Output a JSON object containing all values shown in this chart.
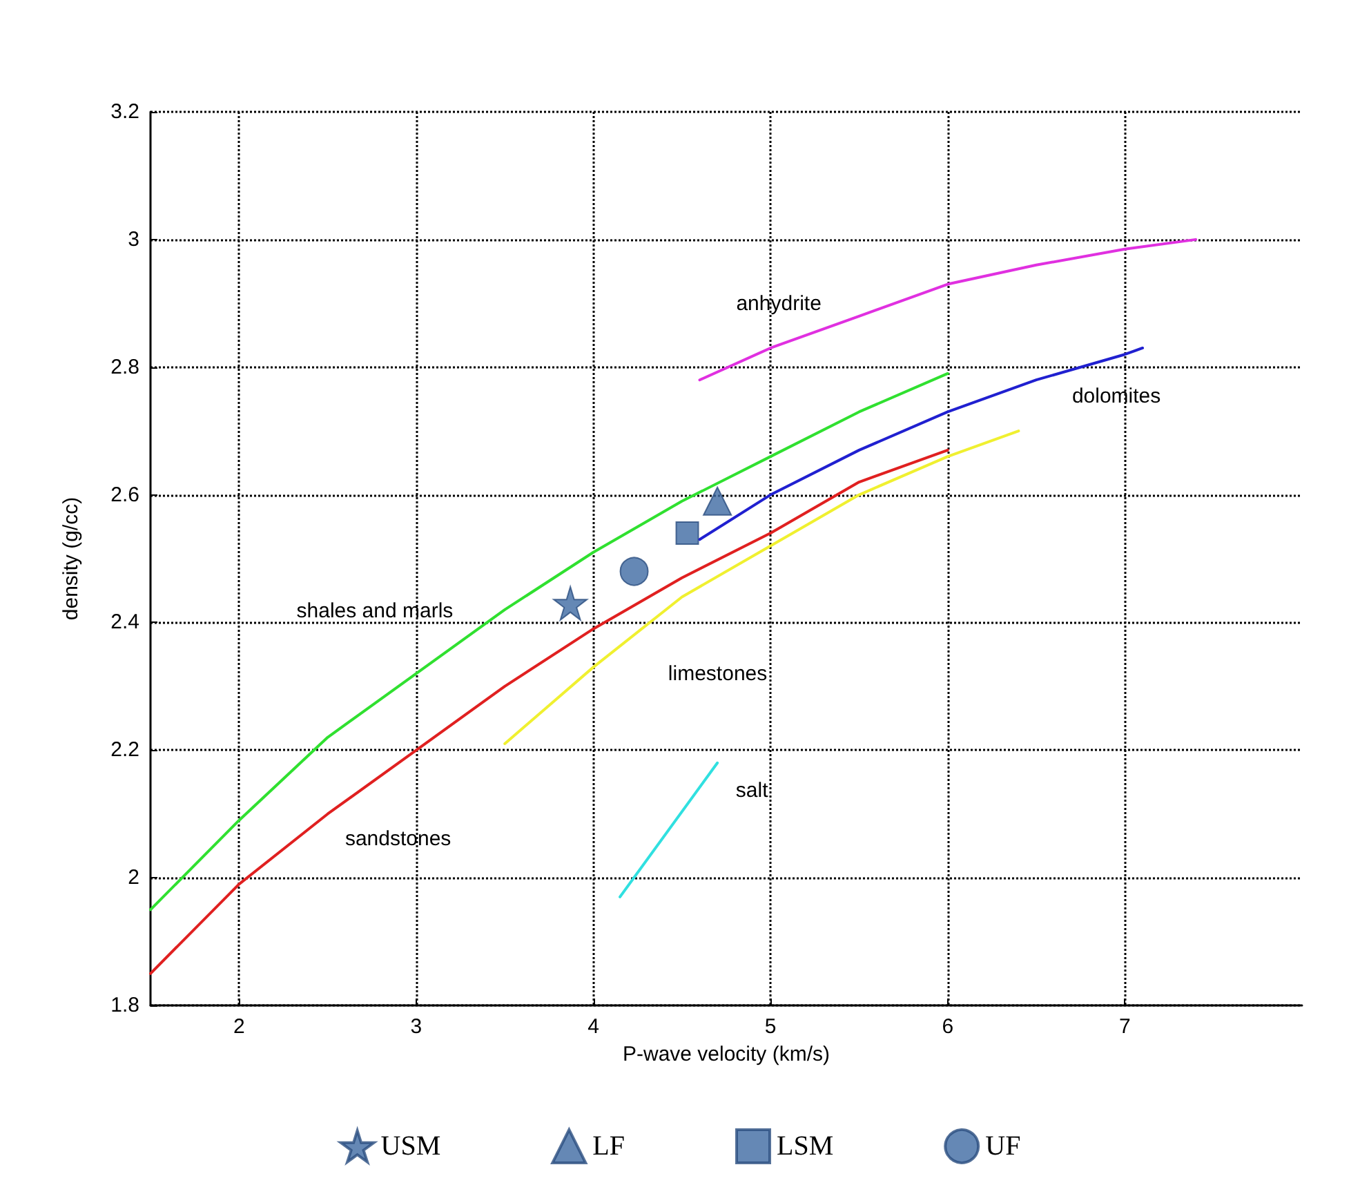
{
  "chart_data": {
    "type": "line",
    "xlabel": "P-wave velocity (km/s)",
    "ylabel": "density (g/cc)",
    "xlim": [
      1.5,
      8
    ],
    "xticks": [
      2,
      3,
      4,
      5,
      6,
      7
    ],
    "ylim": [
      1.8,
      3.2
    ],
    "yticks": [
      1.8,
      2,
      2.2,
      2.4,
      2.6,
      2.8,
      3,
      3.2
    ],
    "grid": true,
    "legend": "bottom",
    "line_style": "solid",
    "series": [
      {
        "name": "sandstones",
        "color": "#e02020",
        "x": [
          1.5,
          2,
          2.5,
          3,
          3.5,
          4,
          4.5,
          5,
          5.5,
          6
        ],
        "values": [
          1.85,
          1.99,
          2.1,
          2.2,
          2.3,
          2.39,
          2.47,
          2.54,
          2.62,
          2.67
        ]
      },
      {
        "name": "shales and marls",
        "color": "#30e030",
        "x": [
          1.5,
          2,
          2.5,
          3,
          3.5,
          4,
          4.5,
          5,
          5.5,
          6
        ],
        "values": [
          1.95,
          2.09,
          2.22,
          2.32,
          2.42,
          2.51,
          2.59,
          2.66,
          2.73,
          2.79
        ]
      },
      {
        "name": "limestones",
        "color": "#f0f030",
        "x": [
          3.5,
          4,
          4.5,
          5,
          5.5,
          6,
          6.4
        ],
        "values": [
          2.21,
          2.33,
          2.44,
          2.52,
          2.6,
          2.66,
          2.7
        ]
      },
      {
        "name": "dolomites",
        "color": "#2020d0",
        "x": [
          4.6,
          5,
          5.5,
          6,
          6.5,
          7,
          7.1
        ],
        "values": [
          2.53,
          2.6,
          2.67,
          2.73,
          2.78,
          2.82,
          2.83
        ]
      },
      {
        "name": "anhydrite",
        "color": "#e030e0",
        "x": [
          4.6,
          5,
          5.5,
          6,
          6.5,
          7,
          7.4
        ],
        "values": [
          2.78,
          2.83,
          2.88,
          2.93,
          2.96,
          2.985,
          3.0
        ]
      },
      {
        "name": "salt",
        "color": "#30e0e0",
        "x": [
          4.15,
          4.7
        ],
        "values": [
          1.97,
          2.18
        ]
      },
      {
        "type": "scatter",
        "name": "USM",
        "marker": "star",
        "color": "#3e6aa3",
        "x": [
          3.87
        ],
        "values": [
          2.43
        ]
      },
      {
        "type": "scatter",
        "name": "LF",
        "marker": "triangle",
        "color": "#3e6aa3",
        "x": [
          4.7
        ],
        "values": [
          2.59
        ]
      },
      {
        "type": "scatter",
        "name": "LSM",
        "marker": "square",
        "color": "#3e6aa3",
        "x": [
          4.53
        ],
        "values": [
          2.54
        ]
      },
      {
        "type": "scatter",
        "name": "UF",
        "marker": "circle",
        "color": "#3e6aa3",
        "x": [
          4.23
        ],
        "values": [
          2.48
        ]
      }
    ]
  }
}
